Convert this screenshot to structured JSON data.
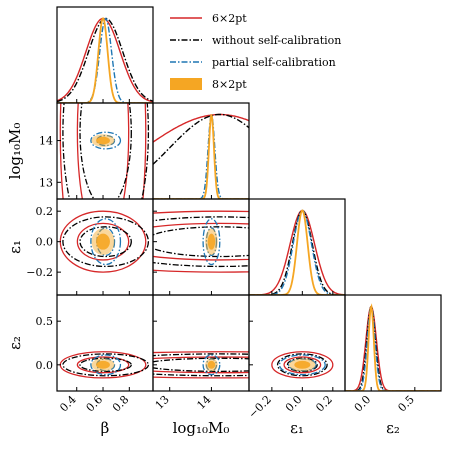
{
  "chart_data": {
    "type": "corner",
    "parameters": [
      {
        "key": "beta",
        "label": "β",
        "ticks": [
          0.4,
          0.6,
          0.8
        ],
        "tick_labels": [
          "0.4",
          "0.6",
          "0.8"
        ],
        "range": [
          0.25,
          0.98
        ]
      },
      {
        "key": "log10M0",
        "label": "log₁₀M₀",
        "ticks": [
          13,
          14
        ],
        "tick_labels": [
          "13",
          "14"
        ],
        "range": [
          12.6,
          14.9
        ]
      },
      {
        "key": "epsilon1",
        "label": "ε₁",
        "ticks": [
          -0.2,
          0.0,
          0.2
        ],
        "tick_labels": [
          "−0.2",
          "0.0",
          "0.2"
        ],
        "range": [
          -0.35,
          0.28
        ]
      },
      {
        "key": "epsilon2",
        "label": "ε₂",
        "ticks": [
          0.0,
          0.5
        ],
        "tick_labels": [
          "0.0",
          "0.5"
        ],
        "range": [
          -0.3,
          0.8
        ]
      }
    ],
    "legend": {
      "placement": "top-right",
      "entries": [
        {
          "label": "6×2pt",
          "color": "#d62728",
          "style": "solid"
        },
        {
          "label": "without self-calibration",
          "color": "#000000",
          "style": "dashdot"
        },
        {
          "label": "partial self-calibration",
          "color": "#1f77b4",
          "style": "dashdot"
        },
        {
          "label": "8×2pt",
          "color": "#f5a623",
          "style": "filled"
        }
      ]
    },
    "series": [
      {
        "name": "6×2pt",
        "color": "#d62728",
        "means": {
          "beta": 0.6,
          "log10M0": 14.2,
          "epsilon1": 0.0,
          "epsilon2": 0.0
        },
        "sigmas": {
          "beta": 0.13,
          "log10M0": 1.8,
          "epsilon1": 0.08,
          "epsilon2": 0.06
        }
      },
      {
        "name": "without self-calibration",
        "color": "#000000",
        "means": {
          "beta": 0.62,
          "log10M0": 14.2,
          "epsilon1": 0.0,
          "epsilon2": 0.0
        },
        "sigmas": {
          "beta": 0.13,
          "log10M0": 1.2,
          "epsilon1": 0.065,
          "epsilon2": 0.05
        }
      },
      {
        "name": "partial self-calibration",
        "color": "#1f77b4",
        "means": {
          "beta": 0.62,
          "log10M0": 14.0,
          "epsilon1": 0.0,
          "epsilon2": 0.0
        },
        "sigmas": {
          "beta": 0.045,
          "log10M0": 0.08,
          "epsilon1": 0.06,
          "epsilon2": 0.045
        }
      },
      {
        "name": "8×2pt",
        "color": "#f5a623",
        "means": {
          "beta": 0.6,
          "log10M0": 14.0,
          "epsilon1": 0.0,
          "epsilon2": 0.0
        },
        "sigmas": {
          "beta": 0.035,
          "log10M0": 0.06,
          "epsilon1": 0.035,
          "epsilon2": 0.03
        }
      }
    ]
  }
}
